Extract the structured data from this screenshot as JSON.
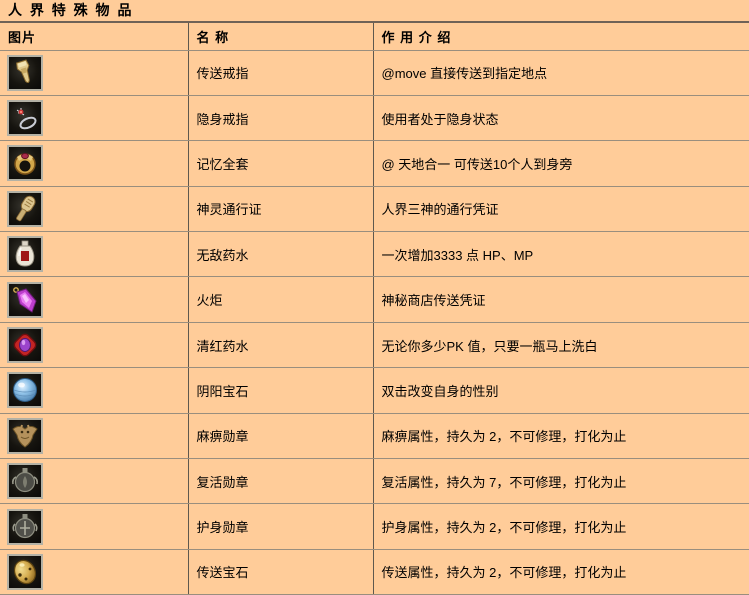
{
  "page": {
    "title": "人 界 特 殊 物 品",
    "colors": {
      "background": "#FFCC99",
      "row_border": "#998e7e",
      "column_border": "#5e584e",
      "icon_frame": "#b3b1a5",
      "icon_background": "#16140f",
      "text": "#000000"
    }
  },
  "table": {
    "headers": [
      {
        "label": "图片"
      },
      {
        "label": "名 称"
      },
      {
        "label": "作 用 介 绍"
      }
    ],
    "rows": [
      {
        "icon": "teleport-ring-icon",
        "name": "传送戒指",
        "description": "@move 直接传送到指定地点"
      },
      {
        "icon": "invisibility-ring-icon",
        "name": "隐身戒指",
        "description": "使用者处于隐身状态"
      },
      {
        "icon": "memory-ring-icon",
        "name": "记忆全套",
        "description": "@ 天地合一  可传送10个人到身旁"
      },
      {
        "icon": "pass-token-icon",
        "name": "神灵通行证",
        "description": "人界三神的通行凭证"
      },
      {
        "icon": "potion-bottle-icon",
        "name": "无敌药水",
        "description": "一次增加3333 点  HP、MP"
      },
      {
        "icon": "torch-crystal-icon",
        "name": "火炬",
        "description": "神秘商店传送凭证"
      },
      {
        "icon": "pk-clear-potion-icon",
        "name": "清红药水",
        "description": "无论你多少PK 值，只要一瓶马上洗白"
      },
      {
        "icon": "blue-orb-icon",
        "name": "阴阳宝石",
        "description": "双击改变自身的性别"
      },
      {
        "icon": "paralysis-medal-icon",
        "name": "麻痹勋章",
        "description": "麻痹属性，持久为 2，不可修理，打化为止"
      },
      {
        "icon": "revival-medal-icon",
        "name": "复活勋章",
        "description": "复活属性，持久为 7，不可修理，打化为止"
      },
      {
        "icon": "guard-medal-icon",
        "name": "护身勋章",
        "description": "护身属性，持久为 2，不可修理，打化为止"
      },
      {
        "icon": "teleport-gem-icon",
        "name": "传送宝石",
        "description": "传送属性，持久为 2，不可修理，打化为止"
      }
    ]
  }
}
